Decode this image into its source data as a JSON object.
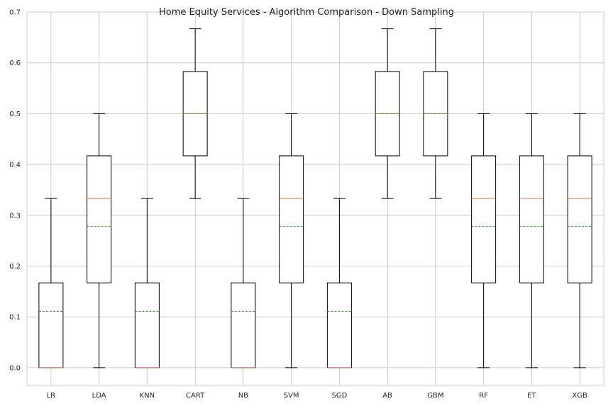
{
  "chart_data": {
    "type": "box",
    "title": "Home Equity Services - Algorithm Comparison - Down Sampling",
    "xlabel": "",
    "ylabel": "",
    "ylim": [
      -0.035,
      0.7
    ],
    "yticks": [
      "0.0",
      "0.1",
      "0.2",
      "0.3",
      "0.4",
      "0.5",
      "0.6",
      "0.7"
    ],
    "grid": true,
    "categories": [
      "LR",
      "LDA",
      "KNN",
      "CART",
      "NB",
      "SVM",
      "SGD",
      "AB",
      "GBM",
      "RF",
      "ET",
      "XGB"
    ],
    "boxes": [
      {
        "label": "LR",
        "whisker_low": 0.0,
        "q1": 0.0,
        "median": 0.0,
        "mean": 0.111,
        "q3": 0.167,
        "whisker_high": 0.333
      },
      {
        "label": "LDA",
        "whisker_low": 0.0,
        "q1": 0.167,
        "median": 0.333,
        "mean": 0.278,
        "q3": 0.417,
        "whisker_high": 0.5
      },
      {
        "label": "KNN",
        "whisker_low": 0.0,
        "q1": 0.0,
        "median": 0.0,
        "mean": 0.111,
        "q3": 0.167,
        "whisker_high": 0.333
      },
      {
        "label": "CART",
        "whisker_low": 0.333,
        "q1": 0.417,
        "median": 0.5,
        "mean": 0.5,
        "q3": 0.583,
        "whisker_high": 0.667
      },
      {
        "label": "NB",
        "whisker_low": 0.0,
        "q1": 0.0,
        "median": 0.0,
        "mean": 0.111,
        "q3": 0.167,
        "whisker_high": 0.333
      },
      {
        "label": "SVM",
        "whisker_low": 0.0,
        "q1": 0.167,
        "median": 0.333,
        "mean": 0.278,
        "q3": 0.417,
        "whisker_high": 0.5
      },
      {
        "label": "SGD",
        "whisker_low": 0.0,
        "q1": 0.0,
        "median": 0.0,
        "mean": 0.111,
        "q3": 0.167,
        "whisker_high": 0.333
      },
      {
        "label": "AB",
        "whisker_low": 0.333,
        "q1": 0.417,
        "median": 0.5,
        "mean": 0.5,
        "q3": 0.583,
        "whisker_high": 0.667
      },
      {
        "label": "GBM",
        "whisker_low": 0.333,
        "q1": 0.417,
        "median": 0.5,
        "mean": 0.5,
        "q3": 0.583,
        "whisker_high": 0.667
      },
      {
        "label": "RF",
        "whisker_low": 0.0,
        "q1": 0.167,
        "median": 0.333,
        "mean": 0.278,
        "q3": 0.417,
        "whisker_high": 0.5
      },
      {
        "label": "ET",
        "whisker_low": 0.0,
        "q1": 0.167,
        "median": 0.333,
        "mean": 0.278,
        "q3": 0.417,
        "whisker_high": 0.5
      },
      {
        "label": "XGB",
        "whisker_low": 0.0,
        "q1": 0.167,
        "median": 0.333,
        "mean": 0.278,
        "q3": 0.417,
        "whisker_high": 0.5
      }
    ],
    "colors": {
      "box": "#000000",
      "median": "#e0724a",
      "mean": "#3a923a",
      "grid": "#cccccc",
      "spine": "#cccccc"
    }
  }
}
